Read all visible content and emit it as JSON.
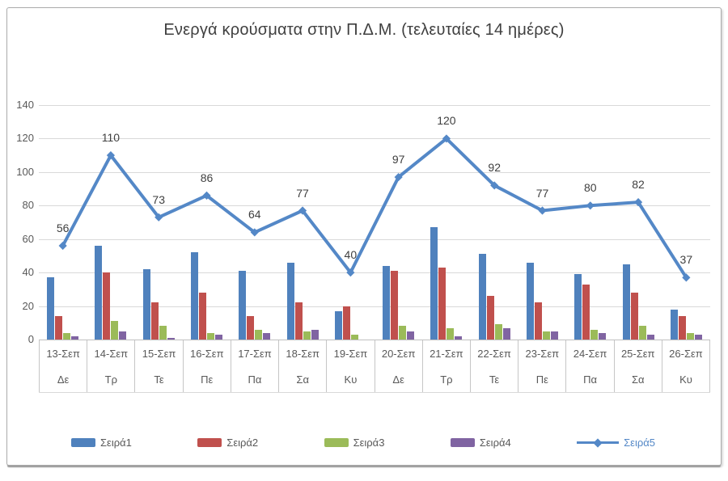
{
  "title": "Ενεργά κρούσματα στην Π.Δ.Μ. (τελευταίες 14 ημέρες)",
  "chart_data": {
    "type": "combo-bar-line",
    "title": "Ενεργά κρούσματα στην Π.Δ.Μ. (τελευταίες 14 ημέρες)",
    "categories": [
      "13-Σεπ",
      "14-Σεπ",
      "15-Σεπ",
      "16-Σεπ",
      "17-Σεπ",
      "18-Σεπ",
      "19-Σεπ",
      "20-Σεπ",
      "21-Σεπ",
      "22-Σεπ",
      "23-Σεπ",
      "24-Σεπ",
      "25-Σεπ",
      "26-Σεπ"
    ],
    "day_labels": [
      "Δε",
      "Τρ",
      "Τε",
      "Πε",
      "Πα",
      "Σα",
      "Κυ",
      "Δε",
      "Τρ",
      "Τε",
      "Πε",
      "Πα",
      "Σα",
      "Κυ"
    ],
    "series": [
      {
        "name": "Σειρά1",
        "type": "bar",
        "color": "#4f81bd",
        "values": [
          37,
          56,
          42,
          52,
          41,
          46,
          17,
          44,
          67,
          51,
          46,
          39,
          45,
          18
        ]
      },
      {
        "name": "Σειρά2",
        "type": "bar",
        "color": "#c0504d",
        "values": [
          14,
          40,
          22,
          28,
          14,
          22,
          20,
          41,
          43,
          26,
          22,
          33,
          28,
          14
        ]
      },
      {
        "name": "Σειρά3",
        "type": "bar",
        "color": "#9bbb59",
        "values": [
          4,
          11,
          8,
          4,
          6,
          5,
          3,
          8,
          7,
          9,
          5,
          6,
          8,
          4
        ]
      },
      {
        "name": "Σειρά4",
        "type": "bar",
        "color": "#8064a2",
        "values": [
          2,
          5,
          1,
          3,
          4,
          6,
          0,
          5,
          2,
          7,
          5,
          4,
          3,
          3
        ]
      },
      {
        "name": "Σειρά5",
        "type": "line",
        "color": "#5488c7",
        "values": [
          56,
          110,
          73,
          86,
          64,
          77,
          40,
          97,
          120,
          92,
          77,
          80,
          82,
          37
        ],
        "data_labels": true
      }
    ],
    "ylim": [
      0,
      140
    ],
    "ytick_step": 20,
    "grid": true,
    "legend_position": "bottom",
    "colors": {
      "grid": "#d9d9d9",
      "axis_line": "#bfbfbf",
      "tick_text": "#595959",
      "title_text": "#3f3f3f"
    }
  }
}
